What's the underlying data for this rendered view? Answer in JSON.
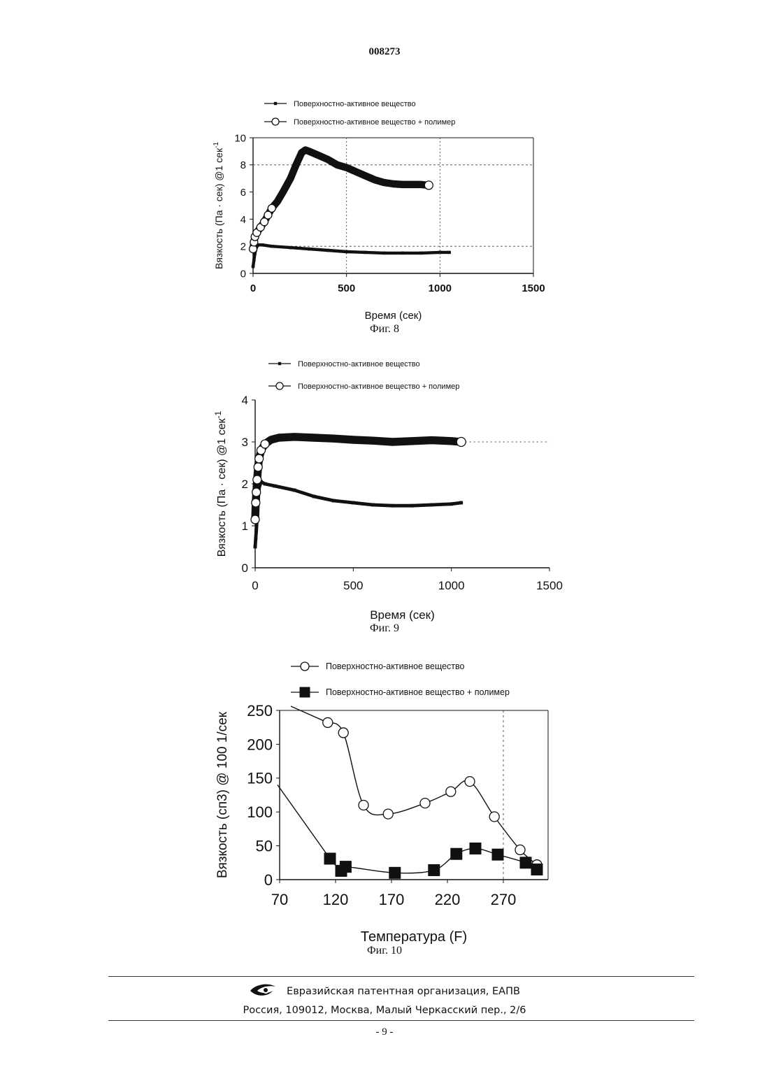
{
  "document": {
    "number": "008273",
    "page_number": "- 9 -",
    "footer_org": "Евразийская патентная организация, ЕАПВ",
    "footer_address": "Россия, 109012, Москва, Малый Черкасский пер., 2/6"
  },
  "chart_data": [
    {
      "type": "scatter",
      "caption": "Фиг. 8",
      "xlabel": "Время (сек)",
      "ylabel": "Вязкость (Па · сек) @1 сек",
      "ylabel_sup": "-1",
      "xlim": [
        0,
        1500
      ],
      "ylim": [
        0,
        10
      ],
      "xticks": [
        0,
        500,
        1000,
        1500
      ],
      "yticks": [
        0,
        2,
        4,
        6,
        8,
        10
      ],
      "grid": "dashed at x=500,1000 and y=2,8",
      "legend_position": "top-left, above plot",
      "series": [
        {
          "name": "Поверхностно-активное вещество",
          "marker": "small-filled-square",
          "x": [
            0,
            5,
            10,
            20,
            30,
            50,
            100,
            200,
            300,
            400,
            500,
            600,
            700,
            800,
            900,
            1000,
            1050
          ],
          "y": [
            0.5,
            1.0,
            1.5,
            2.0,
            2.1,
            2.1,
            2.0,
            1.9,
            1.8,
            1.7,
            1.6,
            1.55,
            1.5,
            1.5,
            1.5,
            1.55,
            1.55
          ]
        },
        {
          "name": "Поверхностно-активное вещество + полимер",
          "marker": "open-circle",
          "x": [
            0,
            5,
            10,
            20,
            40,
            60,
            80,
            100,
            130,
            160,
            200,
            230,
            260,
            280,
            300,
            350,
            400,
            450,
            500,
            550,
            600,
            650,
            700,
            750,
            800,
            850,
            900,
            940
          ],
          "y": [
            1.8,
            2.3,
            2.7,
            3.0,
            3.4,
            3.8,
            4.3,
            4.8,
            5.3,
            6.0,
            7.0,
            8.0,
            8.9,
            9.1,
            9.0,
            8.7,
            8.4,
            8.0,
            7.8,
            7.5,
            7.2,
            6.9,
            6.7,
            6.6,
            6.55,
            6.55,
            6.55,
            6.5
          ]
        }
      ]
    },
    {
      "type": "scatter",
      "caption": "Фиг. 9",
      "xlabel": "Время (сек)",
      "ylabel": "Вязкость (Па · сек) @1 сек",
      "ylabel_sup": "-1",
      "xlim": [
        0,
        1500
      ],
      "ylim": [
        0,
        4
      ],
      "xticks": [
        0,
        500,
        1000,
        1500
      ],
      "yticks": [
        0,
        1,
        2,
        3,
        4
      ],
      "grid": "dotted at y=3",
      "legend_position": "top-left, above plot",
      "series": [
        {
          "name": "Поверхностно-активное вещество",
          "marker": "small-filled-square",
          "x": [
            0,
            3,
            6,
            10,
            15,
            20,
            30,
            50,
            100,
            200,
            300,
            400,
            500,
            600,
            700,
            800,
            900,
            1000,
            1050
          ],
          "y": [
            0.5,
            0.7,
            0.9,
            1.2,
            1.6,
            1.9,
            2.05,
            2.0,
            1.95,
            1.85,
            1.7,
            1.6,
            1.55,
            1.5,
            1.48,
            1.48,
            1.5,
            1.52,
            1.55
          ]
        },
        {
          "name": "Поверхностно-активное вещество + полимер",
          "marker": "open-circle",
          "x": [
            0,
            3,
            6,
            10,
            15,
            20,
            30,
            50,
            80,
            120,
            200,
            300,
            400,
            500,
            600,
            700,
            800,
            900,
            1000,
            1050
          ],
          "y": [
            1.15,
            1.55,
            1.8,
            2.1,
            2.4,
            2.6,
            2.8,
            2.95,
            3.05,
            3.1,
            3.12,
            3.1,
            3.08,
            3.05,
            3.03,
            3.0,
            3.02,
            3.04,
            3.02,
            3.0
          ]
        }
      ]
    },
    {
      "type": "line",
      "caption": "Фиг. 10",
      "xlabel": "Температура (F)",
      "ylabel": "Вязкость (сп3) @ 100 1/сек",
      "xlim": [
        70,
        310
      ],
      "ylim": [
        0,
        250
      ],
      "xticks": [
        70,
        120,
        170,
        220,
        270
      ],
      "yticks": [
        0,
        50,
        100,
        150,
        200,
        250
      ],
      "grid": "dashed vertical at x=270",
      "legend_position": "top, above plot",
      "series": [
        {
          "name": "Поверхностно-активное вещество",
          "marker": "open-circle",
          "x": [
            113,
            127,
            145,
            167,
            200,
            223,
            240,
            262,
            285,
            300
          ],
          "y": [
            232,
            217,
            110,
            97,
            113,
            130,
            145,
            93,
            44,
            22
          ]
        },
        {
          "name": "Поверхностно-активное вещество + полимер",
          "marker": "filled-square",
          "x": [
            115,
            125,
            129,
            173,
            208,
            228,
            245,
            265,
            290,
            300
          ],
          "y": [
            31,
            13,
            19,
            10,
            14,
            38,
            46,
            37,
            25,
            15
          ]
        }
      ]
    }
  ]
}
